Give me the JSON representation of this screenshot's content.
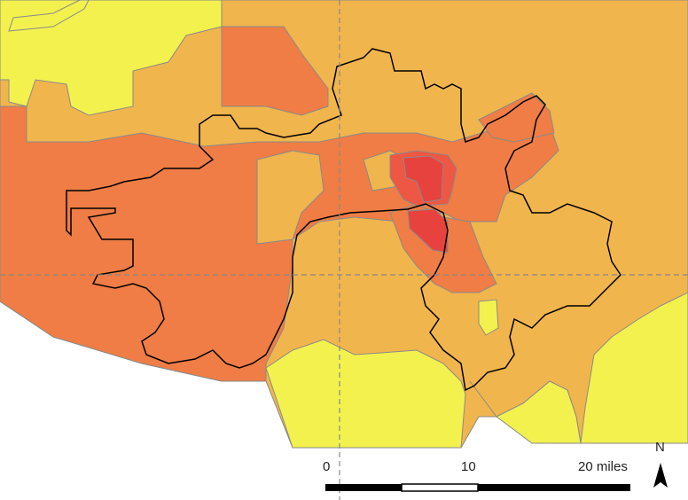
{
  "map": {
    "colors": {
      "lowest": "#f3f14e",
      "low": "#f1b54d",
      "medium": "#ef7d45",
      "high": "#ee5743",
      "highest": "#e8423f",
      "tract_border": "#8a8a8a",
      "city_boundary": "#000000",
      "graticule": "#888888"
    },
    "scale_bar": {
      "labels": [
        "0",
        "10",
        "20 miles"
      ]
    },
    "north_arrow": {
      "label": "N",
      "icon": "north-arrow-icon"
    }
  }
}
